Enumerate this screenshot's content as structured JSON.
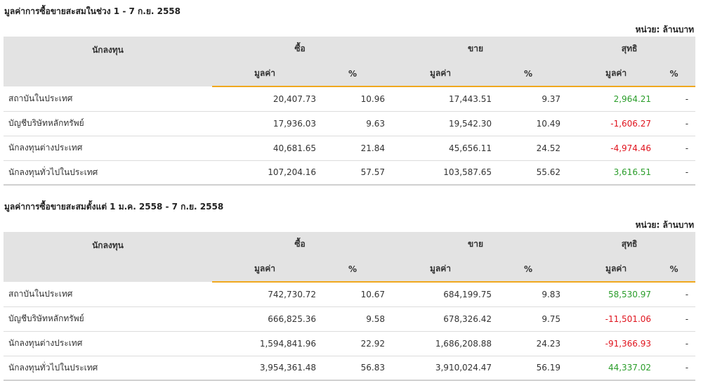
{
  "unit_label": "หน่วย: ล้านบาท",
  "headers": {
    "investor": "นักลงทุน",
    "buy": "ซื้อ",
    "sell": "ขาย",
    "net": "สุทธิ",
    "value": "มูลค่า",
    "percent": "%"
  },
  "colors": {
    "positive": "#2a9d2a",
    "negative": "#e0141e",
    "accent": "#f0a81e",
    "header_bg": "#e3e3e3"
  },
  "tables": [
    {
      "title": "มูลค่าการซื้อขายสะสมในช่วง 1 - 7 ก.ย. 2558",
      "rows": [
        {
          "investor": "สถาบันในประเทศ",
          "buy_value": "20,407.73",
          "buy_pct": "10.96",
          "sell_value": "17,443.51",
          "sell_pct": "9.37",
          "net_value": "2,964.21",
          "net_pct": "-",
          "net_sign": "pos"
        },
        {
          "investor": "บัญชีบริษัทหลักทรัพย์",
          "buy_value": "17,936.03",
          "buy_pct": "9.63",
          "sell_value": "19,542.30",
          "sell_pct": "10.49",
          "net_value": "-1,606.27",
          "net_pct": "-",
          "net_sign": "neg"
        },
        {
          "investor": "นักลงทุนต่างประเทศ",
          "buy_value": "40,681.65",
          "buy_pct": "21.84",
          "sell_value": "45,656.11",
          "sell_pct": "24.52",
          "net_value": "-4,974.46",
          "net_pct": "-",
          "net_sign": "neg"
        },
        {
          "investor": "นักลงทุนทั่วไปในประเทศ",
          "buy_value": "107,204.16",
          "buy_pct": "57.57",
          "sell_value": "103,587.65",
          "sell_pct": "55.62",
          "net_value": "3,616.51",
          "net_pct": "-",
          "net_sign": "pos"
        }
      ]
    },
    {
      "title": "มูลค่าการซื้อขายสะสมตั้งแต่ 1 ม.ค. 2558 - 7 ก.ย. 2558",
      "rows": [
        {
          "investor": "สถาบันในประเทศ",
          "buy_value": "742,730.72",
          "buy_pct": "10.67",
          "sell_value": "684,199.75",
          "sell_pct": "9.83",
          "net_value": "58,530.97",
          "net_pct": "-",
          "net_sign": "pos"
        },
        {
          "investor": "บัญชีบริษัทหลักทรัพย์",
          "buy_value": "666,825.36",
          "buy_pct": "9.58",
          "sell_value": "678,326.42",
          "sell_pct": "9.75",
          "net_value": "-11,501.06",
          "net_pct": "-",
          "net_sign": "neg"
        },
        {
          "investor": "นักลงทุนต่างประเทศ",
          "buy_value": "1,594,841.96",
          "buy_pct": "22.92",
          "sell_value": "1,686,208.88",
          "sell_pct": "24.23",
          "net_value": "-91,366.93",
          "net_pct": "-",
          "net_sign": "neg"
        },
        {
          "investor": "นักลงทุนทั่วไปในประเทศ",
          "buy_value": "3,954,361.48",
          "buy_pct": "56.83",
          "sell_value": "3,910,024.47",
          "sell_pct": "56.19",
          "net_value": "44,337.02",
          "net_pct": "-",
          "net_sign": "pos"
        }
      ]
    }
  ]
}
